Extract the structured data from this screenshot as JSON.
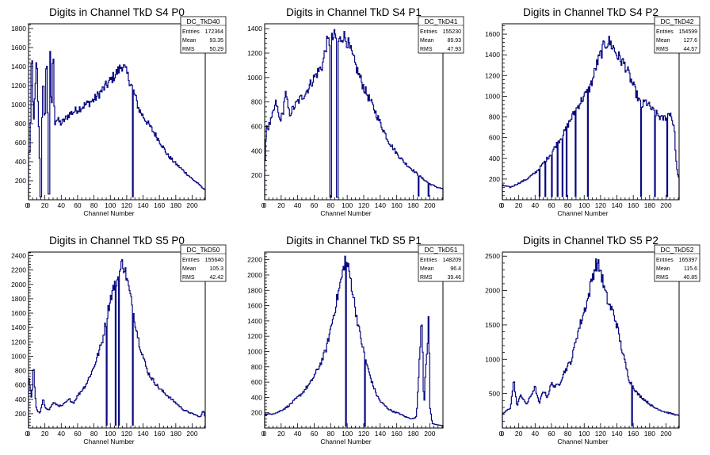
{
  "chart_data": [
    {
      "type": "histogram",
      "title": "Digits in Channel TkD S4 P0",
      "xlabel": "Channel Number",
      "ylabel": "",
      "xlim": [
        0,
        216
      ],
      "ylim": [
        0,
        1850
      ],
      "xticks": [
        0,
        20,
        40,
        60,
        80,
        100,
        120,
        140,
        160,
        180,
        200
      ],
      "yticks": [
        200,
        400,
        600,
        800,
        1000,
        1200,
        1400,
        1600,
        1800
      ],
      "stats": {
        "name": "DC_TkD40",
        "entries": "172364",
        "mean": "93.35",
        "rms": "50.29"
      },
      "anchors": [
        [
          0,
          480
        ],
        [
          2,
          520
        ],
        [
          4,
          1650
        ],
        [
          6,
          800
        ],
        [
          8,
          1100
        ],
        [
          10,
          1500
        ],
        [
          12,
          900
        ],
        [
          14,
          300
        ],
        [
          16,
          750
        ],
        [
          18,
          1300
        ],
        [
          20,
          720
        ],
        [
          22,
          1600
        ],
        [
          24,
          700
        ],
        [
          26,
          1730
        ],
        [
          28,
          820
        ],
        [
          30,
          1650
        ],
        [
          32,
          800
        ],
        [
          34,
          850
        ],
        [
          40,
          800
        ],
        [
          50,
          900
        ],
        [
          60,
          950
        ],
        [
          70,
          1000
        ],
        [
          80,
          1050
        ],
        [
          90,
          1150
        ],
        [
          100,
          1250
        ],
        [
          110,
          1360
        ],
        [
          115,
          1420
        ],
        [
          120,
          1330
        ],
        [
          126,
          1200
        ],
        [
          130,
          1100
        ],
        [
          135,
          950
        ],
        [
          140,
          880
        ],
        [
          150,
          750
        ],
        [
          160,
          620
        ],
        [
          170,
          470
        ],
        [
          180,
          380
        ],
        [
          190,
          300
        ],
        [
          200,
          220
        ],
        [
          210,
          150
        ],
        [
          216,
          100
        ]
      ],
      "spikes": [
        [
          14,
          30
        ],
        [
          15,
          30
        ],
        [
          24,
          60
        ],
        [
          25,
          60
        ],
        [
          127,
          30
        ]
      ]
    },
    {
      "type": "histogram",
      "title": "Digits in Channel TkD S4 P1",
      "xlabel": "Channel Number",
      "ylabel": "",
      "xlim": [
        0,
        216
      ],
      "ylim": [
        0,
        1440
      ],
      "xticks": [
        0,
        20,
        40,
        60,
        80,
        100,
        120,
        140,
        160,
        180,
        200
      ],
      "yticks": [
        200,
        400,
        600,
        800,
        1000,
        1200,
        1400
      ],
      "stats": {
        "name": "DC_TkD41",
        "entries": "155230",
        "mean": "89.93",
        "rms": "47.93"
      },
      "anchors": [
        [
          0,
          210
        ],
        [
          2,
          620
        ],
        [
          4,
          580
        ],
        [
          6,
          620
        ],
        [
          8,
          650
        ],
        [
          10,
          700
        ],
        [
          14,
          800
        ],
        [
          18,
          650
        ],
        [
          22,
          700
        ],
        [
          25,
          880
        ],
        [
          30,
          700
        ],
        [
          40,
          800
        ],
        [
          50,
          880
        ],
        [
          60,
          1000
        ],
        [
          70,
          1100
        ],
        [
          75,
          1280
        ],
        [
          80,
          1300
        ],
        [
          85,
          1340
        ],
        [
          90,
          1290
        ],
        [
          95,
          1350
        ],
        [
          100,
          1300
        ],
        [
          110,
          1100
        ],
        [
          120,
          920
        ],
        [
          130,
          780
        ],
        [
          140,
          630
        ],
        [
          150,
          480
        ],
        [
          160,
          380
        ],
        [
          170,
          300
        ],
        [
          180,
          240
        ],
        [
          190,
          180
        ],
        [
          200,
          130
        ],
        [
          210,
          100
        ],
        [
          216,
          90
        ]
      ],
      "spikes": [
        [
          79,
          20
        ],
        [
          80,
          20
        ],
        [
          87,
          20
        ],
        [
          88,
          20
        ],
        [
          186,
          30
        ],
        [
          198,
          30
        ]
      ]
    },
    {
      "type": "histogram",
      "title": "Digits in Channel TkD S4 P2",
      "xlabel": "Channel Number",
      "ylabel": "",
      "xlim": [
        0,
        216
      ],
      "ylim": [
        0,
        1700
      ],
      "xticks": [
        0,
        20,
        40,
        60,
        80,
        100,
        120,
        140,
        160,
        180,
        200
      ],
      "yticks": [
        200,
        400,
        600,
        800,
        1000,
        1200,
        1400,
        1600
      ],
      "stats": {
        "name": "DC_TkD42",
        "entries": "154599",
        "mean": "127.6",
        "rms": "44.57"
      },
      "anchors": [
        [
          0,
          140
        ],
        [
          5,
          130
        ],
        [
          10,
          120
        ],
        [
          15,
          140
        ],
        [
          20,
          160
        ],
        [
          25,
          180
        ],
        [
          30,
          200
        ],
        [
          35,
          230
        ],
        [
          40,
          260
        ],
        [
          45,
          300
        ],
        [
          50,
          350
        ],
        [
          55,
          400
        ],
        [
          60,
          450
        ],
        [
          65,
          520
        ],
        [
          70,
          580
        ],
        [
          75,
          640
        ],
        [
          80,
          720
        ],
        [
          85,
          800
        ],
        [
          90,
          870
        ],
        [
          95,
          940
        ],
        [
          100,
          1000
        ],
        [
          105,
          1050
        ],
        [
          110,
          1150
        ],
        [
          115,
          1300
        ],
        [
          120,
          1400
        ],
        [
          125,
          1500
        ],
        [
          130,
          1530
        ],
        [
          135,
          1480
        ],
        [
          140,
          1400
        ],
        [
          145,
          1350
        ],
        [
          150,
          1300
        ],
        [
          155,
          1200
        ],
        [
          160,
          1100
        ],
        [
          165,
          1000
        ],
        [
          170,
          900
        ],
        [
          175,
          950
        ],
        [
          180,
          900
        ],
        [
          185,
          850
        ],
        [
          190,
          820
        ],
        [
          195,
          780
        ],
        [
          200,
          800
        ],
        [
          205,
          850
        ],
        [
          210,
          700
        ],
        [
          213,
          300
        ],
        [
          216,
          200
        ]
      ],
      "spikes": [
        [
          45,
          30
        ],
        [
          52,
          30
        ],
        [
          60,
          30
        ],
        [
          67,
          30
        ],
        [
          73,
          30
        ],
        [
          78,
          30
        ],
        [
          89,
          30
        ],
        [
          104,
          30
        ],
        [
          169,
          30
        ],
        [
          186,
          30
        ],
        [
          201,
          30
        ]
      ]
    },
    {
      "type": "histogram",
      "title": "Digits in Channel TkD S5 P0",
      "xlabel": "Channel Number",
      "ylabel": "",
      "xlim": [
        0,
        216
      ],
      "ylim": [
        0,
        2450
      ],
      "xticks": [
        0,
        20,
        40,
        60,
        80,
        100,
        120,
        140,
        160,
        180,
        200
      ],
      "yticks": [
        200,
        400,
        600,
        800,
        1000,
        1200,
        1400,
        1600,
        1800,
        2000,
        2200,
        2400
      ],
      "stats": {
        "name": "DC_TkD50",
        "entries": "155640",
        "mean": "105.3",
        "rms": "42.42"
      },
      "anchors": [
        [
          0,
          700
        ],
        [
          2,
          550
        ],
        [
          4,
          400
        ],
        [
          6,
          950
        ],
        [
          8,
          450
        ],
        [
          10,
          250
        ],
        [
          14,
          200
        ],
        [
          18,
          400
        ],
        [
          20,
          300
        ],
        [
          25,
          250
        ],
        [
          30,
          350
        ],
        [
          40,
          300
        ],
        [
          50,
          400
        ],
        [
          55,
          350
        ],
        [
          60,
          450
        ],
        [
          70,
          600
        ],
        [
          80,
          850
        ],
        [
          90,
          1200
        ],
        [
          95,
          1500
        ],
        [
          100,
          1800
        ],
        [
          105,
          2000
        ],
        [
          110,
          2100
        ],
        [
          115,
          2320
        ],
        [
          120,
          2100
        ],
        [
          125,
          1800
        ],
        [
          130,
          1500
        ],
        [
          135,
          1200
        ],
        [
          140,
          1000
        ],
        [
          145,
          800
        ],
        [
          150,
          700
        ],
        [
          160,
          550
        ],
        [
          170,
          450
        ],
        [
          180,
          350
        ],
        [
          190,
          250
        ],
        [
          200,
          200
        ],
        [
          205,
          180
        ],
        [
          210,
          150
        ],
        [
          214,
          250
        ],
        [
          216,
          150
        ]
      ],
      "spikes": [
        [
          95,
          40
        ],
        [
          106,
          40
        ],
        [
          110,
          40
        ],
        [
          127,
          40
        ]
      ]
    },
    {
      "type": "histogram",
      "title": "Digits in Channel TkD S5 P1",
      "xlabel": "Channel Number",
      "ylabel": "",
      "xlim": [
        0,
        216
      ],
      "ylim": [
        0,
        2300
      ],
      "xticks": [
        0,
        20,
        40,
        60,
        80,
        100,
        120,
        140,
        160,
        180,
        200
      ],
      "yticks": [
        200,
        400,
        600,
        800,
        1000,
        1200,
        1400,
        1600,
        1800,
        2000,
        2200
      ],
      "stats": {
        "name": "DC_TkD51",
        "entries": "148209",
        "mean": "96.4",
        "rms": "39.46"
      },
      "anchors": [
        [
          0,
          180
        ],
        [
          5,
          180
        ],
        [
          10,
          190
        ],
        [
          15,
          200
        ],
        [
          20,
          230
        ],
        [
          25,
          260
        ],
        [
          30,
          300
        ],
        [
          35,
          350
        ],
        [
          40,
          400
        ],
        [
          45,
          450
        ],
        [
          50,
          520
        ],
        [
          55,
          580
        ],
        [
          60,
          680
        ],
        [
          65,
          780
        ],
        [
          70,
          900
        ],
        [
          75,
          1050
        ],
        [
          80,
          1300
        ],
        [
          85,
          1550
        ],
        [
          90,
          1800
        ],
        [
          95,
          2050
        ],
        [
          98,
          2250
        ],
        [
          100,
          2150
        ],
        [
          105,
          1900
        ],
        [
          110,
          1550
        ],
        [
          115,
          1250
        ],
        [
          120,
          1000
        ],
        [
          125,
          780
        ],
        [
          130,
          600
        ],
        [
          135,
          450
        ],
        [
          140,
          350
        ],
        [
          145,
          300
        ],
        [
          150,
          250
        ],
        [
          155,
          220
        ],
        [
          160,
          200
        ],
        [
          165,
          180
        ],
        [
          170,
          150
        ],
        [
          175,
          130
        ],
        [
          180,
          120
        ],
        [
          184,
          150
        ],
        [
          187,
          800
        ],
        [
          189,
          1200
        ],
        [
          190,
          1500
        ],
        [
          191,
          1300
        ],
        [
          193,
          200
        ],
        [
          195,
          800
        ],
        [
          197,
          1000
        ],
        [
          198,
          1300
        ],
        [
          199,
          1600
        ],
        [
          200,
          300
        ],
        [
          203,
          60
        ],
        [
          210,
          40
        ],
        [
          216,
          30
        ]
      ],
      "spikes": [
        [
          98,
          20
        ],
        [
          121,
          20
        ]
      ]
    },
    {
      "type": "histogram",
      "title": "Digits in Channel TkD S5 P2",
      "xlabel": "Channel Number",
      "ylabel": "",
      "xlim": [
        0,
        216
      ],
      "ylim": [
        0,
        2560
      ],
      "xticks": [
        0,
        20,
        40,
        60,
        80,
        100,
        120,
        140,
        160,
        180,
        200
      ],
      "yticks": [
        500,
        1000,
        1500,
        2000,
        2500
      ],
      "stats": {
        "name": "DC_TkD52",
        "entries": "165397",
        "mean": "115.6",
        "rms": "40.85"
      },
      "anchors": [
        [
          0,
          200
        ],
        [
          5,
          250
        ],
        [
          10,
          300
        ],
        [
          14,
          700
        ],
        [
          18,
          300
        ],
        [
          22,
          500
        ],
        [
          26,
          400
        ],
        [
          30,
          350
        ],
        [
          40,
          600
        ],
        [
          45,
          350
        ],
        [
          50,
          550
        ],
        [
          55,
          450
        ],
        [
          60,
          650
        ],
        [
          65,
          600
        ],
        [
          70,
          650
        ],
        [
          75,
          800
        ],
        [
          80,
          900
        ],
        [
          85,
          1000
        ],
        [
          90,
          1300
        ],
        [
          95,
          1500
        ],
        [
          100,
          1700
        ],
        [
          105,
          1900
        ],
        [
          110,
          2200
        ],
        [
          115,
          2400
        ],
        [
          120,
          2300
        ],
        [
          125,
          2000
        ],
        [
          130,
          1800
        ],
        [
          135,
          1700
        ],
        [
          140,
          1500
        ],
        [
          145,
          1200
        ],
        [
          150,
          950
        ],
        [
          155,
          700
        ],
        [
          160,
          600
        ],
        [
          165,
          500
        ],
        [
          170,
          450
        ],
        [
          175,
          400
        ],
        [
          180,
          350
        ],
        [
          185,
          300
        ],
        [
          190,
          280
        ],
        [
          195,
          250
        ],
        [
          200,
          230
        ],
        [
          210,
          200
        ],
        [
          216,
          180
        ]
      ],
      "spikes": [
        [
          158,
          30
        ]
      ]
    }
  ]
}
